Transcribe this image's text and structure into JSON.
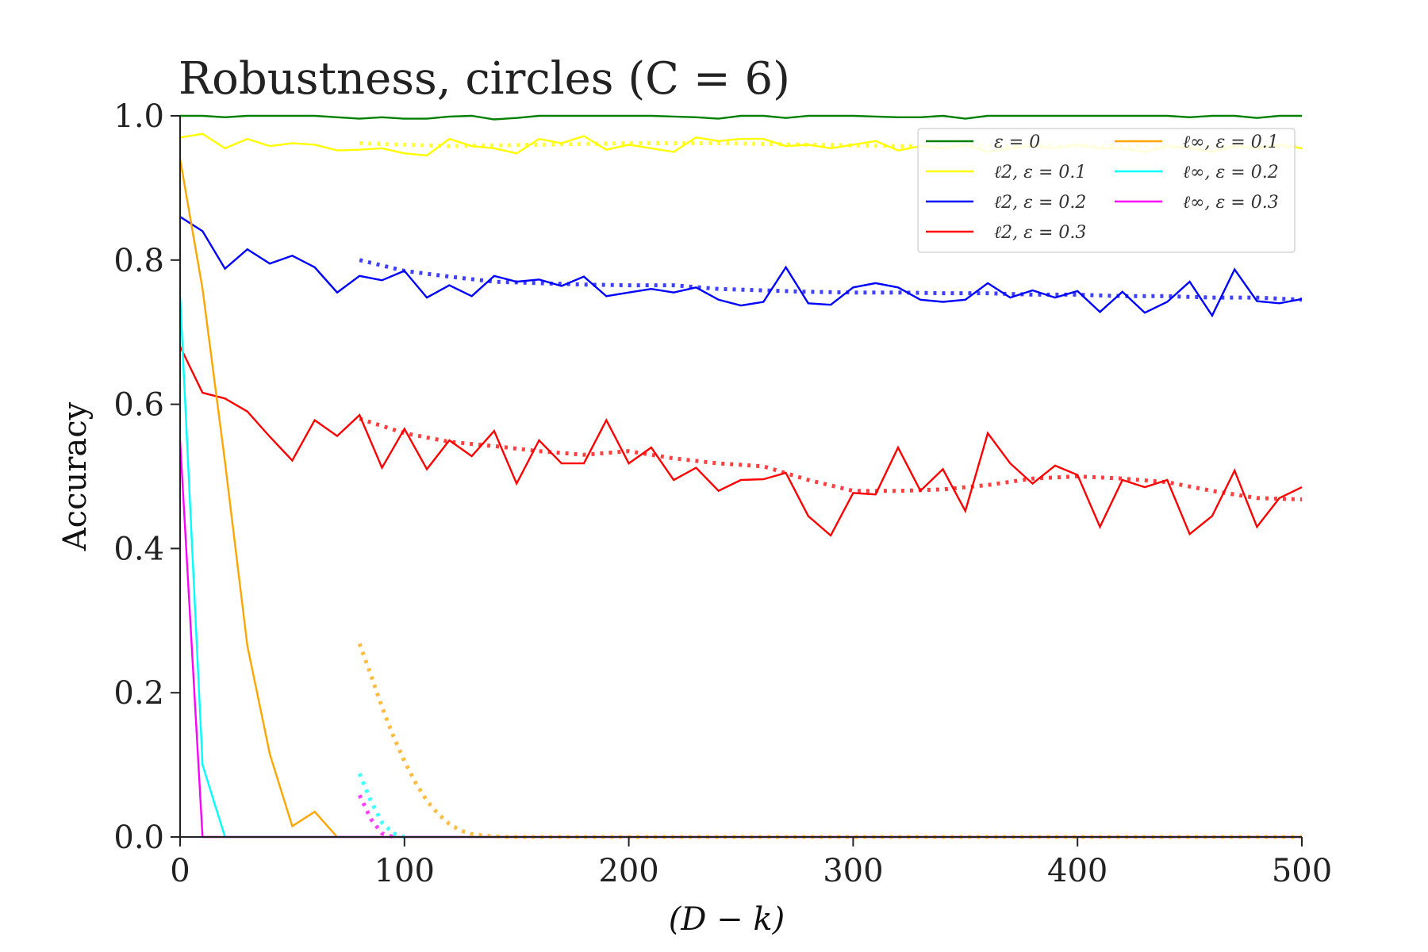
{
  "chart_data": {
    "type": "line",
    "title": "Robustness, circles (C = 6)",
    "xlabel": "(D − k)",
    "ylabel": "Accuracy",
    "xlim": [
      0,
      500
    ],
    "ylim": [
      0,
      1
    ],
    "xticks": [
      "0",
      "100",
      "200",
      "300",
      "400",
      "500"
    ],
    "yticks": [
      "0.0",
      "0.2",
      "0.4",
      "0.6",
      "0.8",
      "1.0"
    ],
    "grid": false,
    "legend_position": "top-right",
    "legend_columns": 2,
    "x": [
      0,
      10,
      20,
      30,
      40,
      50,
      60,
      70,
      80,
      90,
      100,
      110,
      120,
      130,
      140,
      150,
      160,
      170,
      180,
      190,
      200,
      210,
      220,
      230,
      240,
      250,
      260,
      270,
      280,
      290,
      300,
      310,
      320,
      330,
      340,
      350,
      360,
      370,
      380,
      390,
      400,
      410,
      420,
      430,
      440,
      450,
      460,
      470,
      480,
      490,
      500
    ],
    "series": [
      {
        "name": "ε = 0",
        "color": "#008000",
        "style": "solid",
        "values": [
          1.0,
          1.0,
          0.998,
          1.0,
          1.0,
          1.0,
          1.0,
          0.998,
          0.996,
          0.998,
          0.996,
          0.996,
          0.999,
          1.0,
          0.995,
          0.997,
          1.0,
          1.0,
          1.0,
          1.0,
          1.0,
          1.0,
          0.999,
          0.998,
          0.996,
          1.0,
          1.0,
          0.997,
          1.0,
          1.0,
          1.0,
          0.999,
          0.998,
          0.998,
          1.0,
          0.996,
          1.0,
          1.0,
          1.0,
          1.0,
          1.0,
          1.0,
          1.0,
          1.0,
          1.0,
          0.998,
          1.0,
          1.0,
          0.997,
          1.0,
          1.0
        ]
      },
      {
        "name": "ℓ2, ε = 0.1",
        "color": "#ffff00",
        "style": "solid",
        "values": [
          0.97,
          0.975,
          0.955,
          0.968,
          0.958,
          0.962,
          0.96,
          0.952,
          0.953,
          0.955,
          0.948,
          0.945,
          0.968,
          0.958,
          0.955,
          0.948,
          0.968,
          0.962,
          0.972,
          0.953,
          0.96,
          0.955,
          0.95,
          0.97,
          0.965,
          0.968,
          0.968,
          0.958,
          0.96,
          0.955,
          0.96,
          0.965,
          0.952,
          0.958,
          0.955,
          0.96,
          0.95,
          0.955,
          0.958,
          0.955,
          0.96,
          0.955,
          0.955,
          0.95,
          0.958,
          0.955,
          0.95,
          0.958,
          0.955,
          0.96,
          0.955
        ]
      },
      {
        "name": "ℓ2, ε = 0.2",
        "color": "#0000ff",
        "style": "solid",
        "values": [
          0.86,
          0.84,
          0.788,
          0.815,
          0.795,
          0.806,
          0.79,
          0.755,
          0.778,
          0.772,
          0.785,
          0.748,
          0.765,
          0.75,
          0.778,
          0.77,
          0.773,
          0.764,
          0.777,
          0.75,
          0.755,
          0.76,
          0.755,
          0.762,
          0.745,
          0.737,
          0.742,
          0.79,
          0.74,
          0.738,
          0.762,
          0.768,
          0.762,
          0.745,
          0.742,
          0.745,
          0.768,
          0.748,
          0.758,
          0.748,
          0.757,
          0.728,
          0.756,
          0.727,
          0.742,
          0.77,
          0.723,
          0.787,
          0.743,
          0.74,
          0.746
        ]
      },
      {
        "name": "ℓ2, ε = 0.3",
        "color": "#ff0000",
        "style": "solid",
        "values": [
          0.68,
          0.616,
          0.608,
          0.59,
          0.555,
          0.522,
          0.578,
          0.556,
          0.585,
          0.512,
          0.566,
          0.51,
          0.55,
          0.528,
          0.563,
          0.49,
          0.55,
          0.518,
          0.518,
          0.578,
          0.518,
          0.54,
          0.495,
          0.512,
          0.48,
          0.495,
          0.496,
          0.505,
          0.445,
          0.418,
          0.477,
          0.475,
          0.54,
          0.48,
          0.51,
          0.452,
          0.56,
          0.518,
          0.49,
          0.515,
          0.502,
          0.43,
          0.495,
          0.485,
          0.495,
          0.42,
          0.445,
          0.508,
          0.43,
          0.47,
          0.485
        ]
      },
      {
        "name": "ℓ∞, ε = 0.1",
        "color": "#ffa500",
        "style": "solid",
        "values": [
          0.94,
          0.76,
          0.52,
          0.265,
          0.115,
          0.015,
          0.035,
          0.0,
          0.0,
          0.0,
          0.0,
          0.0,
          0.0,
          0.0,
          0.0,
          0.0,
          0.0,
          0.0,
          0.0,
          0.0,
          0.0,
          0.0,
          0.0,
          0.0,
          0.0,
          0.0,
          0.0,
          0.0,
          0.0,
          0.0,
          0.0,
          0.0,
          0.0,
          0.0,
          0.0,
          0.0,
          0.0,
          0.0,
          0.0,
          0.0,
          0.0,
          0.0,
          0.0,
          0.0,
          0.0,
          0.0,
          0.0,
          0.0,
          0.0,
          0.0,
          0.0
        ]
      },
      {
        "name": "ℓ∞, ε = 0.2",
        "color": "#00ffff",
        "style": "solid",
        "values": [
          0.75,
          0.1,
          0.0,
          0.0,
          0.0,
          0.0,
          0.0,
          0.0,
          0.0,
          0.0,
          0.0,
          0.0,
          0.0,
          0.0,
          0.0,
          0.0,
          0.0,
          0.0,
          0.0,
          0.0,
          0.0,
          0.0,
          0.0,
          0.0,
          0.0,
          0.0,
          0.0,
          0.0,
          0.0,
          0.0,
          0.0,
          0.0,
          0.0,
          0.0,
          0.0,
          0.0,
          0.0,
          0.0,
          0.0,
          0.0,
          0.0,
          0.0,
          0.0,
          0.0,
          0.0,
          0.0,
          0.0,
          0.0,
          0.0,
          0.0,
          0.0
        ]
      },
      {
        "name": "ℓ∞, ε = 0.3",
        "color": "#ff00ff",
        "style": "solid",
        "values": [
          0.55,
          0.0,
          0.0,
          0.0,
          0.0,
          0.0,
          0.0,
          0.0,
          0.0,
          0.0,
          0.0,
          0.0,
          0.0,
          0.0,
          0.0,
          0.0,
          0.0,
          0.0,
          0.0,
          0.0,
          0.0,
          0.0,
          0.0,
          0.0,
          0.0,
          0.0,
          0.0,
          0.0,
          0.0,
          0.0,
          0.0,
          0.0,
          0.0,
          0.0,
          0.0,
          0.0,
          0.0,
          0.0,
          0.0,
          0.0,
          0.0,
          0.0,
          0.0,
          0.0,
          0.0,
          0.0,
          0.0,
          0.0,
          0.0,
          0.0,
          0.0
        ]
      }
    ],
    "dotted_series": [
      {
        "color": "#ffff00",
        "x": [
          80,
          120,
          160,
          200,
          240,
          280,
          320,
          360,
          400,
          440,
          480,
          500
        ],
        "values": [
          0.962,
          0.958,
          0.96,
          0.962,
          0.962,
          0.96,
          0.958,
          0.958,
          0.958,
          0.957,
          0.957,
          0.957
        ]
      },
      {
        "color": "#0000ff",
        "x": [
          80,
          100,
          120,
          140,
          160,
          180,
          200,
          220,
          240,
          260,
          280,
          300,
          320,
          340,
          360,
          380,
          400,
          420,
          440,
          460,
          480,
          500
        ],
        "values": [
          0.8,
          0.785,
          0.777,
          0.77,
          0.768,
          0.766,
          0.765,
          0.765,
          0.76,
          0.758,
          0.756,
          0.755,
          0.755,
          0.754,
          0.754,
          0.752,
          0.752,
          0.75,
          0.75,
          0.748,
          0.748,
          0.745
        ]
      },
      {
        "color": "#ff0000",
        "x": [
          80,
          100,
          120,
          140,
          160,
          180,
          200,
          220,
          240,
          260,
          280,
          300,
          320,
          340,
          360,
          380,
          400,
          420,
          440,
          460,
          480,
          500
        ],
        "values": [
          0.58,
          0.56,
          0.548,
          0.542,
          0.535,
          0.53,
          0.535,
          0.525,
          0.518,
          0.514,
          0.495,
          0.48,
          0.48,
          0.482,
          0.488,
          0.497,
          0.5,
          0.497,
          0.492,
          0.48,
          0.47,
          0.468
        ]
      },
      {
        "color": "#ffa500",
        "x": [
          80,
          85,
          90,
          95,
          100,
          105,
          110,
          115,
          120,
          125,
          130,
          135,
          140,
          145
        ],
        "values": [
          0.268,
          0.225,
          0.18,
          0.14,
          0.105,
          0.075,
          0.05,
          0.032,
          0.018,
          0.009,
          0.004,
          0.002,
          0.001,
          0.0
        ]
      },
      {
        "color": "#00ffff",
        "x": [
          80,
          85,
          90,
          95,
          100
        ],
        "values": [
          0.088,
          0.05,
          0.02,
          0.005,
          0.0
        ]
      },
      {
        "color": "#ff00ff",
        "x": [
          80,
          85,
          90,
          95
        ],
        "values": [
          0.058,
          0.025,
          0.005,
          0.0
        ]
      },
      {
        "color": "#ffa500",
        "x": [
          145,
          200,
          300,
          400,
          500
        ],
        "values": [
          0.0,
          0.0,
          0.0,
          0.0,
          0.0
        ]
      }
    ]
  }
}
